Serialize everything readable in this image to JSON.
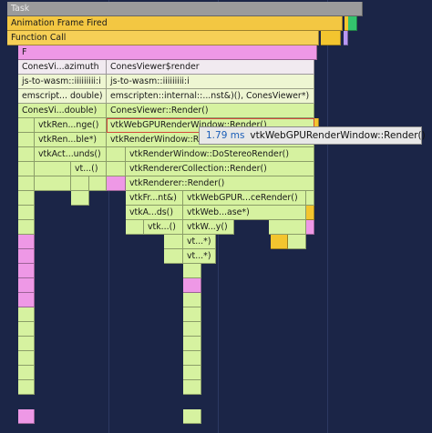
{
  "colors": {
    "background": "#1b2547",
    "task": "#9b9b9b",
    "animation": "#f3c742",
    "function": "#f6cf56",
    "script": "#ee98e6",
    "entry": "#f1eaf0",
    "js": "#d6f2a0",
    "wasm": "#eef6d2",
    "yellow": "#f3c52f",
    "green": "#33c46d",
    "purple": "#b897f4"
  },
  "flame": {
    "task_label": "Task",
    "animation_frame_label": "Animation Frame Fired",
    "function_call_label": "Function Call",
    "f_label": "F",
    "row3": {
      "a": "ConesVi...azimuth",
      "b": "ConesViewer$render"
    },
    "row4": {
      "a": "js-to-wasm::iiiiiiiii:i",
      "b": "js-to-wasm::iiiiiiiii:i"
    },
    "row5": {
      "a": "emscript... double)",
      "b": "emscripten::internal::...nst&)(), ConesViewer*)"
    },
    "row6": {
      "a": "ConesVi...double)",
      "b": "ConesViewer::Render()"
    },
    "row7": {
      "a": "vtkRen...nge()",
      "b": "vtkWebGPURenderWindow::Render()"
    },
    "row8": {
      "a": "vtkRen...ble*)",
      "b": "vtkRenderWindow::Ren...()"
    },
    "row9": {
      "a": "vtkAct...unds()",
      "b": "vtkRenderWindow::DoStereoRender()"
    },
    "row10": {
      "a": "vt...()",
      "b": "vtkRendererCollection::Render()"
    },
    "row11": {
      "a": "vtkRenderer::Render()"
    },
    "row12": {
      "a": "vtkFr...nt&)",
      "b": "vtkWebGPUR...ceRender()"
    },
    "row13": {
      "a": "vtkA...ds()",
      "b": "vtkWeb...ase*)"
    },
    "row14": {
      "a": "vtk...()",
      "b": "vtkW...y()"
    },
    "row15": {
      "a": "vt...*)"
    },
    "row16": {
      "a": "vt...*)"
    }
  },
  "tooltip": {
    "duration": "1.79 ms",
    "name": "vtkWebGPURenderWindow::Render()"
  }
}
